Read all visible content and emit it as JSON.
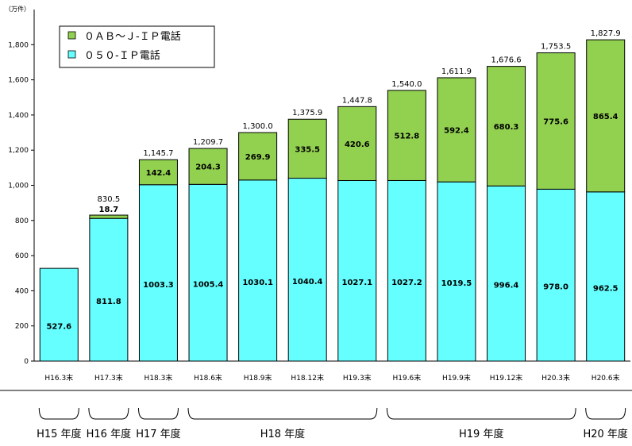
{
  "chart_data": {
    "type": "bar",
    "stacked": true,
    "unit_label": "（万件）",
    "categories": [
      "H16.3末",
      "H17.3末",
      "H18.3末",
      "H18.6末",
      "H18.9末",
      "H18.12末",
      "H19.3末",
      "H19.6末",
      "H19.9末",
      "H19.12末",
      "H20.3末",
      "H20.6末"
    ],
    "series": [
      {
        "name": "０５０-ＩＰ電話",
        "color": "#66ffff",
        "values": [
          527.6,
          811.8,
          1003.3,
          1005.4,
          1030.1,
          1040.4,
          1027.1,
          1027.2,
          1019.5,
          996.4,
          978.0,
          962.5
        ],
        "labels": [
          "527.6",
          "811.8",
          "1003.3",
          "1005.4",
          "1030.1",
          "1040.4",
          "1027.1",
          "1027.2",
          "1019.5",
          "996.4",
          "978.0",
          "962.5"
        ]
      },
      {
        "name": "０ＡＢ～Ｊ-ＩＰ電話",
        "color": "#92d050",
        "values": [
          0,
          18.7,
          142.4,
          204.3,
          269.9,
          335.5,
          420.6,
          512.8,
          592.4,
          680.3,
          775.6,
          865.4
        ],
        "labels": [
          "",
          "18.7",
          "142.4",
          "204.3",
          "269.9",
          "335.5",
          "420.6",
          "512.8",
          "592.4",
          "680.3",
          "775.6",
          "865.4"
        ]
      }
    ],
    "totals": [
      "",
      "830.5",
      "1,145.7",
      "1,209.7",
      "1,300.0",
      "1,375.9",
      "1,447.8",
      "1,540.0",
      "1,611.9",
      "1,676.6",
      "1,753.5",
      "1,827.9"
    ],
    "ylim": [
      0,
      2000
    ],
    "yticks": [
      0,
      200,
      400,
      600,
      800,
      1000,
      1200,
      1400,
      1600,
      1800
    ],
    "ytick_labels": [
      "0",
      "200",
      "400",
      "600",
      "800",
      "1,000",
      "1,200",
      "1,400",
      "1,600",
      "1,800"
    ],
    "legend": {
      "placement": "top-left",
      "entries": [
        "０ＡＢ～Ｊ-ＩＰ電話",
        "０５０-ＩＰ電話"
      ]
    },
    "fiscal_years": [
      {
        "label": "H15 年度",
        "start": 0,
        "end": 0
      },
      {
        "label": "H16 年度",
        "start": 1,
        "end": 1
      },
      {
        "label": "H17 年度",
        "start": 2,
        "end": 2
      },
      {
        "label": "H18 年度",
        "start": 3,
        "end": 6
      },
      {
        "label": "H19 年度",
        "start": 7,
        "end": 10
      },
      {
        "label": "H20 年度",
        "start": 11,
        "end": 11
      }
    ],
    "grid": false
  }
}
